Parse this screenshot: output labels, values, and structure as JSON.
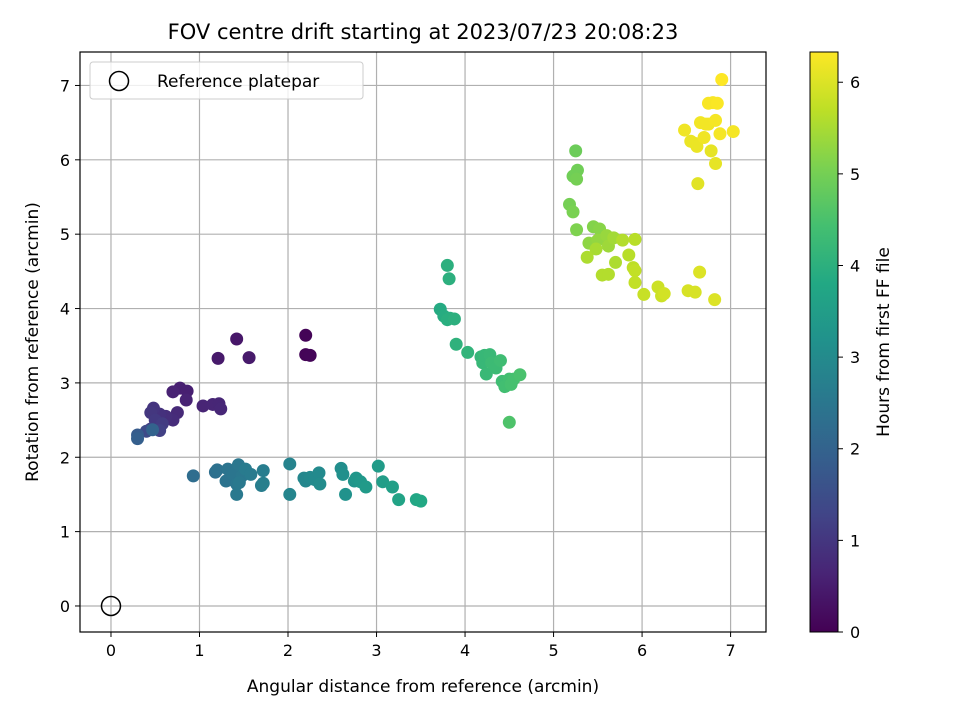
{
  "chart_data": {
    "type": "scatter",
    "title": "FOV centre drift starting at 2023/07/23 20:08:23",
    "xlabel": "Angular distance from reference (arcmin)",
    "ylabel": "Rotation from reference (arcmin)",
    "xlim": [
      -0.35,
      7.4
    ],
    "ylim": [
      -0.35,
      7.45
    ],
    "x_ticks": [
      0,
      1,
      2,
      3,
      4,
      5,
      6,
      7
    ],
    "y_ticks": [
      0,
      1,
      2,
      3,
      4,
      5,
      6,
      7
    ],
    "grid": true,
    "legend": {
      "position": "top-left",
      "entries": [
        "Reference platepar"
      ]
    },
    "colorbar": {
      "label": "Hours from first FF file",
      "range": [
        0,
        6.33
      ],
      "ticks": [
        0,
        1,
        2,
        3,
        4,
        5,
        6
      ],
      "colormap": "viridis"
    },
    "reference": {
      "x": 0,
      "y": 0
    },
    "points": [
      {
        "x": 2.2,
        "y": 3.64,
        "h": 0.05
      },
      {
        "x": 2.2,
        "y": 3.38,
        "h": 0.05
      },
      {
        "x": 2.25,
        "y": 3.37,
        "h": 0.07
      },
      {
        "x": 1.42,
        "y": 3.59,
        "h": 0.4
      },
      {
        "x": 1.21,
        "y": 3.33,
        "h": 0.45
      },
      {
        "x": 1.56,
        "y": 3.34,
        "h": 0.45
      },
      {
        "x": 0.78,
        "y": 2.93,
        "h": 0.55
      },
      {
        "x": 0.86,
        "y": 2.89,
        "h": 0.55
      },
      {
        "x": 0.7,
        "y": 2.88,
        "h": 0.6
      },
      {
        "x": 0.85,
        "y": 2.77,
        "h": 0.62
      },
      {
        "x": 1.04,
        "y": 2.69,
        "h": 0.65
      },
      {
        "x": 1.15,
        "y": 2.71,
        "h": 0.67
      },
      {
        "x": 1.22,
        "y": 2.72,
        "h": 0.68
      },
      {
        "x": 1.24,
        "y": 2.65,
        "h": 0.7
      },
      {
        "x": 0.75,
        "y": 2.6,
        "h": 0.75
      },
      {
        "x": 0.7,
        "y": 2.5,
        "h": 0.8
      },
      {
        "x": 0.62,
        "y": 2.55,
        "h": 0.85
      },
      {
        "x": 0.55,
        "y": 2.58,
        "h": 0.9
      },
      {
        "x": 0.48,
        "y": 2.66,
        "h": 0.95
      },
      {
        "x": 0.45,
        "y": 2.6,
        "h": 1.0
      },
      {
        "x": 0.5,
        "y": 2.5,
        "h": 1.05
      },
      {
        "x": 0.58,
        "y": 2.45,
        "h": 1.1
      },
      {
        "x": 0.45,
        "y": 2.38,
        "h": 1.15
      },
      {
        "x": 0.55,
        "y": 2.36,
        "h": 1.2
      },
      {
        "x": 0.4,
        "y": 2.35,
        "h": 1.4
      },
      {
        "x": 0.3,
        "y": 2.3,
        "h": 1.8
      },
      {
        "x": 0.3,
        "y": 2.25,
        "h": 1.9
      },
      {
        "x": 0.47,
        "y": 2.37,
        "h": 2.0
      },
      {
        "x": 0.93,
        "y": 1.75,
        "h": 2.25
      },
      {
        "x": 1.18,
        "y": 1.8,
        "h": 2.3
      },
      {
        "x": 1.2,
        "y": 1.83,
        "h": 2.35
      },
      {
        "x": 1.3,
        "y": 1.68,
        "h": 2.4
      },
      {
        "x": 1.32,
        "y": 1.84,
        "h": 2.42
      },
      {
        "x": 1.38,
        "y": 1.77,
        "h": 2.45
      },
      {
        "x": 1.42,
        "y": 1.64,
        "h": 2.47
      },
      {
        "x": 1.44,
        "y": 1.9,
        "h": 2.5
      },
      {
        "x": 1.48,
        "y": 1.75,
        "h": 2.5
      },
      {
        "x": 1.45,
        "y": 1.66,
        "h": 2.55
      },
      {
        "x": 1.42,
        "y": 1.5,
        "h": 2.55
      },
      {
        "x": 1.52,
        "y": 1.84,
        "h": 2.6
      },
      {
        "x": 1.58,
        "y": 1.77,
        "h": 2.6
      },
      {
        "x": 1.72,
        "y": 1.82,
        "h": 2.65
      },
      {
        "x": 1.7,
        "y": 1.62,
        "h": 2.65
      },
      {
        "x": 1.72,
        "y": 1.65,
        "h": 2.7
      },
      {
        "x": 2.02,
        "y": 1.91,
        "h": 2.8
      },
      {
        "x": 2.02,
        "y": 1.5,
        "h": 2.85
      },
      {
        "x": 2.18,
        "y": 1.72,
        "h": 2.9
      },
      {
        "x": 2.2,
        "y": 1.68,
        "h": 2.9
      },
      {
        "x": 2.25,
        "y": 1.73,
        "h": 2.95
      },
      {
        "x": 2.3,
        "y": 1.7,
        "h": 3.0
      },
      {
        "x": 2.35,
        "y": 1.79,
        "h": 3.0
      },
      {
        "x": 2.36,
        "y": 1.64,
        "h": 3.05
      },
      {
        "x": 2.6,
        "y": 1.85,
        "h": 3.1
      },
      {
        "x": 2.62,
        "y": 1.77,
        "h": 3.15
      },
      {
        "x": 2.65,
        "y": 1.5,
        "h": 3.2
      },
      {
        "x": 2.75,
        "y": 1.68,
        "h": 3.25
      },
      {
        "x": 2.77,
        "y": 1.72,
        "h": 3.3
      },
      {
        "x": 2.82,
        "y": 1.67,
        "h": 3.35
      },
      {
        "x": 2.88,
        "y": 1.6,
        "h": 3.4
      },
      {
        "x": 3.02,
        "y": 1.88,
        "h": 3.45
      },
      {
        "x": 3.07,
        "y": 1.67,
        "h": 3.5
      },
      {
        "x": 3.18,
        "y": 1.6,
        "h": 3.55
      },
      {
        "x": 3.25,
        "y": 1.43,
        "h": 3.65
      },
      {
        "x": 3.45,
        "y": 1.43,
        "h": 3.75
      },
      {
        "x": 3.5,
        "y": 1.41,
        "h": 3.8
      },
      {
        "x": 3.72,
        "y": 3.99,
        "h": 3.85
      },
      {
        "x": 3.76,
        "y": 3.9,
        "h": 3.9
      },
      {
        "x": 3.8,
        "y": 3.85,
        "h": 3.95
      },
      {
        "x": 3.83,
        "y": 3.87,
        "h": 3.95
      },
      {
        "x": 3.88,
        "y": 3.86,
        "h": 4.0
      },
      {
        "x": 3.8,
        "y": 4.58,
        "h": 4.0
      },
      {
        "x": 3.82,
        "y": 4.4,
        "h": 4.0
      },
      {
        "x": 3.9,
        "y": 3.52,
        "h": 4.05
      },
      {
        "x": 4.03,
        "y": 3.41,
        "h": 4.1
      },
      {
        "x": 4.18,
        "y": 3.35,
        "h": 4.15
      },
      {
        "x": 4.2,
        "y": 3.27,
        "h": 4.2
      },
      {
        "x": 4.22,
        "y": 3.37,
        "h": 4.2
      },
      {
        "x": 4.24,
        "y": 3.12,
        "h": 4.25
      },
      {
        "x": 4.28,
        "y": 3.38,
        "h": 4.25
      },
      {
        "x": 4.3,
        "y": 3.27,
        "h": 4.3
      },
      {
        "x": 4.35,
        "y": 3.2,
        "h": 4.3
      },
      {
        "x": 4.4,
        "y": 3.3,
        "h": 4.35
      },
      {
        "x": 4.42,
        "y": 3.02,
        "h": 4.35
      },
      {
        "x": 4.45,
        "y": 2.95,
        "h": 4.4
      },
      {
        "x": 4.5,
        "y": 3.05,
        "h": 4.4
      },
      {
        "x": 4.52,
        "y": 2.98,
        "h": 4.45
      },
      {
        "x": 4.55,
        "y": 3.05,
        "h": 4.45
      },
      {
        "x": 4.62,
        "y": 3.11,
        "h": 4.5
      },
      {
        "x": 4.5,
        "y": 2.47,
        "h": 4.55
      },
      {
        "x": 5.25,
        "y": 6.12,
        "h": 4.9
      },
      {
        "x": 5.27,
        "y": 5.86,
        "h": 4.95
      },
      {
        "x": 5.22,
        "y": 5.78,
        "h": 4.95
      },
      {
        "x": 5.26,
        "y": 5.74,
        "h": 5.0
      },
      {
        "x": 5.18,
        "y": 5.4,
        "h": 5.0
      },
      {
        "x": 5.22,
        "y": 5.3,
        "h": 5.05
      },
      {
        "x": 5.26,
        "y": 5.06,
        "h": 5.1
      },
      {
        "x": 5.45,
        "y": 5.1,
        "h": 5.15
      },
      {
        "x": 5.52,
        "y": 5.07,
        "h": 5.2
      },
      {
        "x": 5.4,
        "y": 4.88,
        "h": 5.25
      },
      {
        "x": 5.5,
        "y": 4.92,
        "h": 5.3
      },
      {
        "x": 5.6,
        "y": 4.98,
        "h": 5.35
      },
      {
        "x": 5.62,
        "y": 4.84,
        "h": 5.4
      },
      {
        "x": 5.68,
        "y": 4.95,
        "h": 5.45
      },
      {
        "x": 5.48,
        "y": 4.8,
        "h": 5.5
      },
      {
        "x": 5.38,
        "y": 4.69,
        "h": 5.55
      },
      {
        "x": 5.7,
        "y": 4.62,
        "h": 5.55
      },
      {
        "x": 5.55,
        "y": 4.45,
        "h": 5.6
      },
      {
        "x": 5.62,
        "y": 4.46,
        "h": 5.6
      },
      {
        "x": 5.78,
        "y": 4.92,
        "h": 5.6
      },
      {
        "x": 5.92,
        "y": 4.93,
        "h": 5.65
      },
      {
        "x": 5.85,
        "y": 4.72,
        "h": 5.65
      },
      {
        "x": 5.9,
        "y": 4.55,
        "h": 5.7
      },
      {
        "x": 5.92,
        "y": 4.51,
        "h": 5.75
      },
      {
        "x": 5.92,
        "y": 4.35,
        "h": 5.75
      },
      {
        "x": 6.02,
        "y": 4.19,
        "h": 5.8
      },
      {
        "x": 6.18,
        "y": 4.29,
        "h": 5.85
      },
      {
        "x": 6.22,
        "y": 4.17,
        "h": 5.85
      },
      {
        "x": 6.25,
        "y": 4.2,
        "h": 5.9
      },
      {
        "x": 6.52,
        "y": 4.24,
        "h": 5.95
      },
      {
        "x": 6.6,
        "y": 4.22,
        "h": 5.95
      },
      {
        "x": 6.82,
        "y": 4.12,
        "h": 6.0
      },
      {
        "x": 6.65,
        "y": 4.49,
        "h": 6.0
      },
      {
        "x": 6.63,
        "y": 5.68,
        "h": 6.05
      },
      {
        "x": 6.83,
        "y": 5.95,
        "h": 6.1
      },
      {
        "x": 6.78,
        "y": 6.12,
        "h": 6.1
      },
      {
        "x": 6.6,
        "y": 6.22,
        "h": 6.15
      },
      {
        "x": 6.55,
        "y": 6.25,
        "h": 6.15
      },
      {
        "x": 6.62,
        "y": 6.18,
        "h": 6.15
      },
      {
        "x": 6.48,
        "y": 6.4,
        "h": 6.2
      },
      {
        "x": 6.7,
        "y": 6.3,
        "h": 6.2
      },
      {
        "x": 6.75,
        "y": 6.48,
        "h": 6.2
      },
      {
        "x": 6.66,
        "y": 6.5,
        "h": 6.22
      },
      {
        "x": 6.72,
        "y": 6.48,
        "h": 6.22
      },
      {
        "x": 6.83,
        "y": 6.53,
        "h": 6.25
      },
      {
        "x": 6.88,
        "y": 6.35,
        "h": 6.25
      },
      {
        "x": 7.03,
        "y": 6.38,
        "h": 6.25
      },
      {
        "x": 6.75,
        "y": 6.76,
        "h": 6.28
      },
      {
        "x": 6.8,
        "y": 6.77,
        "h": 6.28
      },
      {
        "x": 6.85,
        "y": 6.76,
        "h": 6.3
      },
      {
        "x": 6.9,
        "y": 7.08,
        "h": 6.33
      }
    ]
  }
}
